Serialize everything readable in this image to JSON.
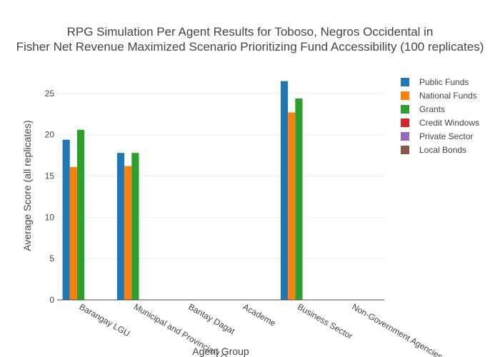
{
  "chart_data": {
    "type": "bar",
    "title_lines": [
      "RPG Simulation Per Agent Results for Toboso, Negros Occidental in",
      "Fisher Net Revenue Maximized Scenario Prioritizing Fund Accessibility (100 replicates)"
    ],
    "xlabel": "Agent Group",
    "ylabel": "Average Score (all replicates)",
    "ylim": [
      0,
      27.5
    ],
    "yticks": [
      0,
      5,
      10,
      15,
      20,
      25
    ],
    "grid": true,
    "legend_position": "top-right",
    "categories": [
      "Barangay LGU",
      "Municipal and Provincial LGU",
      "Bantay Dagat",
      "Academe",
      "Business Sector",
      "Non-Government Agencies"
    ],
    "series": [
      {
        "name": "Public Funds",
        "color": "#1f77b4",
        "values": [
          19.4,
          17.8,
          0,
          0,
          26.5,
          0
        ]
      },
      {
        "name": "National Funds",
        "color": "#ff7f0e",
        "values": [
          16.1,
          16.2,
          0,
          0,
          22.7,
          0
        ]
      },
      {
        "name": "Grants",
        "color": "#2ca02c",
        "values": [
          20.6,
          17.8,
          0,
          0,
          24.4,
          0
        ]
      },
      {
        "name": "Credit Windows",
        "color": "#d62728",
        "values": [
          0,
          0,
          0,
          0,
          0,
          0
        ]
      },
      {
        "name": "Private Sector",
        "color": "#9467bd",
        "values": [
          0,
          0,
          0,
          0,
          0,
          0
        ]
      },
      {
        "name": "Local Bonds",
        "color": "#8c564b",
        "values": [
          0,
          0,
          0,
          0,
          0,
          0
        ]
      }
    ]
  }
}
